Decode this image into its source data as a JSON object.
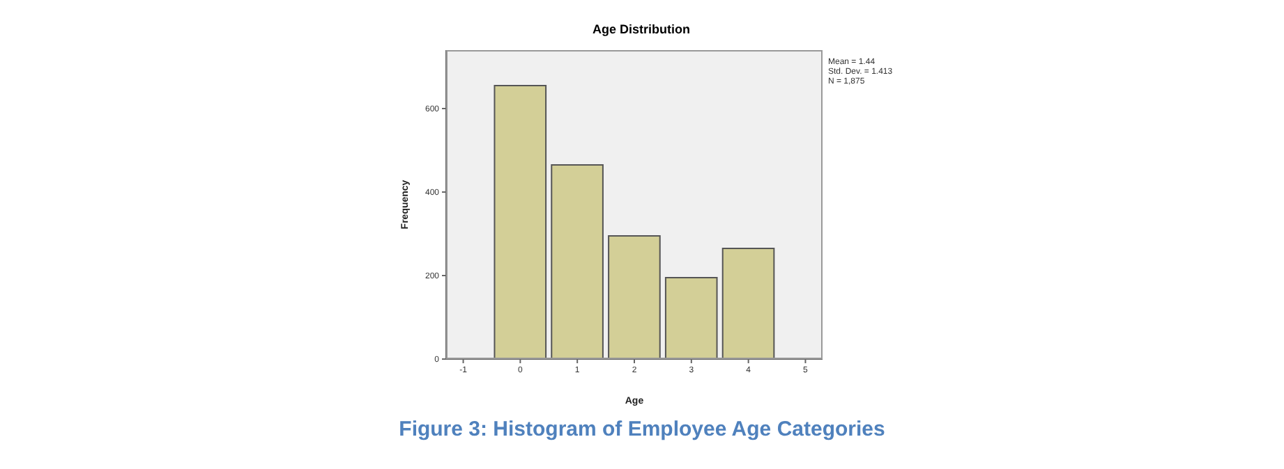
{
  "chart_data": {
    "type": "histogram",
    "title": "Age Distribution",
    "xlabel": "Age",
    "ylabel": "Frequency",
    "bins": [
      -0.5,
      0.5,
      1.5,
      2.5,
      3.5,
      4.5
    ],
    "values": [
      655,
      465,
      295,
      195,
      265
    ],
    "color": "#d3cf97",
    "xlim": [
      -1.3,
      5.3
    ],
    "xticks": [
      -1,
      0,
      1,
      2,
      3,
      4,
      5
    ],
    "ylim": [
      0,
      740
    ],
    "yticks": [
      0,
      200,
      400,
      600
    ],
    "grid": false,
    "legend": false,
    "annotations": [
      "Mean = 1.44",
      "Std. Dev. = 1.413",
      "N = 1,875",
      "Figure 3: Histogram of Employee Age Categories"
    ]
  }
}
